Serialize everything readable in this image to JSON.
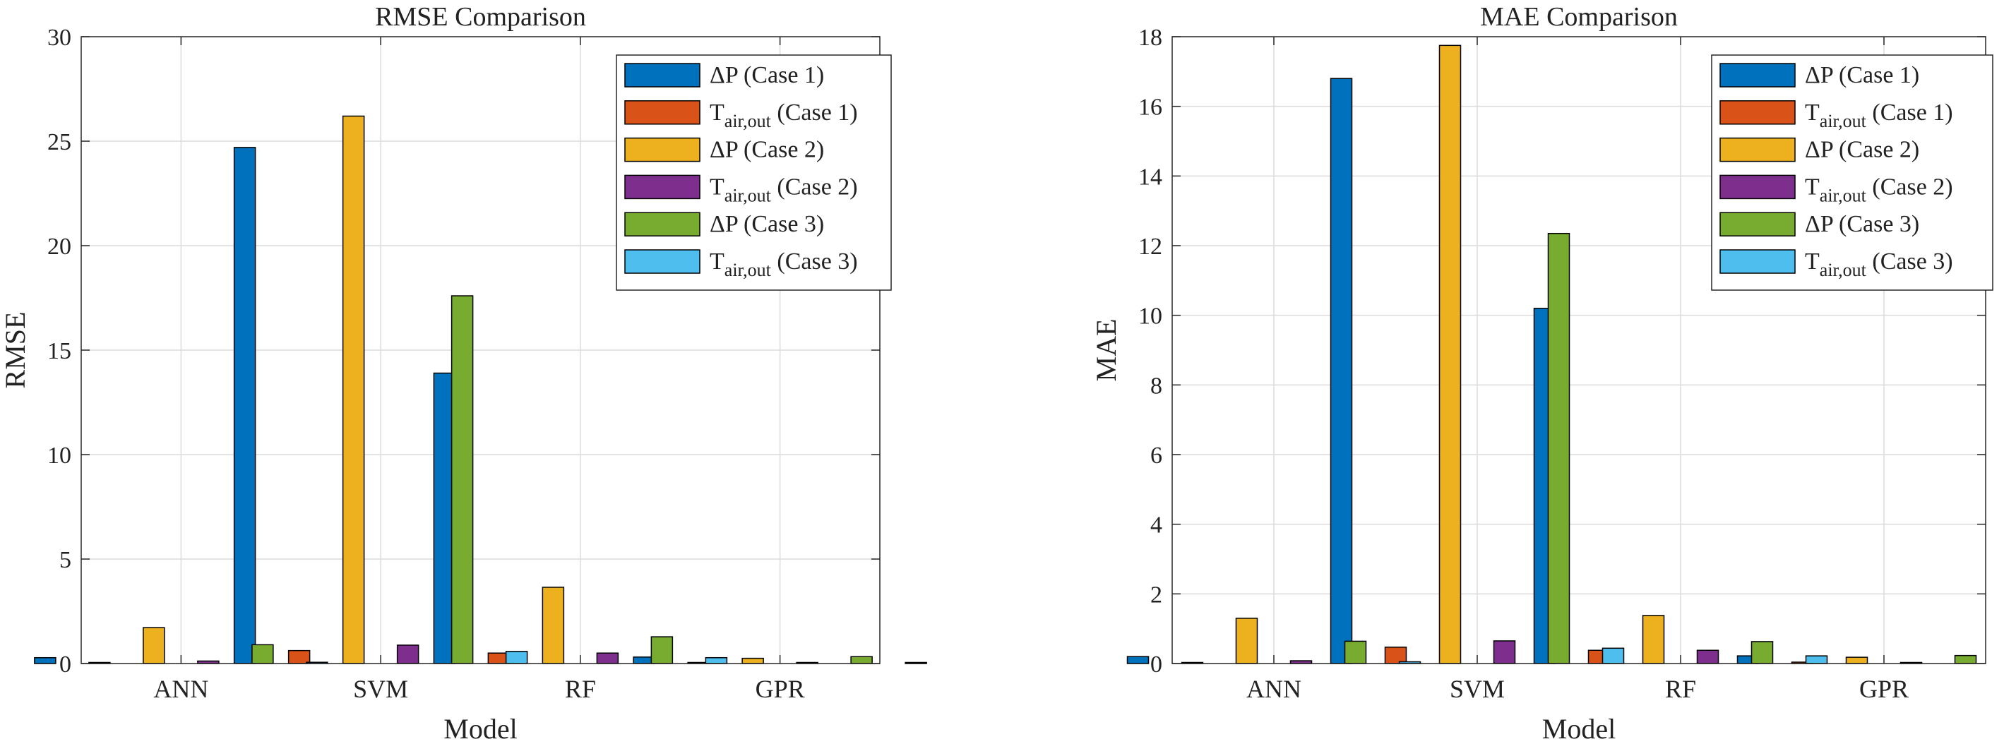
{
  "chart_data": [
    {
      "type": "bar",
      "title": "RMSE Comparison",
      "xlabel": "Model",
      "ylabel": "RMSE",
      "categories": [
        "ANN",
        "SVM",
        "RF",
        "GPR"
      ],
      "ylim": [
        0,
        30
      ],
      "yticks": [
        0,
        5,
        10,
        15,
        20,
        25,
        30
      ],
      "grid": true,
      "legend_position": "top-right",
      "series": [
        {
          "name": "ΔP (Case 1)",
          "base": "ΔP",
          "sub": "",
          "suffix": " (Case 1)",
          "color": "#0072BD",
          "values": [
            0.28,
            24.7,
            13.9,
            0.31
          ]
        },
        {
          "name": "Tair,out (Case 1)",
          "base": "T",
          "sub": "air,out",
          "suffix": " (Case 1)",
          "color": "#D95319",
          "values": [
            0.03,
            0.62,
            0.5,
            0.05
          ]
        },
        {
          "name": "ΔP (Case 2)",
          "base": "ΔP",
          "sub": "",
          "suffix": " (Case 2)",
          "color": "#EDB120",
          "values": [
            1.72,
            26.2,
            3.65,
            0.25
          ]
        },
        {
          "name": "Tair,out (Case 2)",
          "base": "T",
          "sub": "air,out",
          "suffix": " (Case 2)",
          "color": "#7E2F8E",
          "values": [
            0.12,
            0.88,
            0.5,
            0.04
          ]
        },
        {
          "name": "ΔP (Case 3)",
          "base": "ΔP",
          "sub": "",
          "suffix": " (Case 3)",
          "color": "#77AC30",
          "values": [
            0.9,
            17.6,
            1.28,
            0.33
          ]
        },
        {
          "name": "Tair,out (Case 3)",
          "base": "T",
          "sub": "air,out",
          "suffix": " (Case 3)",
          "color": "#4DBEEE",
          "values": [
            0.06,
            0.58,
            0.28,
            0.03
          ]
        }
      ]
    },
    {
      "type": "bar",
      "title": "MAE Comparison",
      "xlabel": "Model",
      "ylabel": "MAE",
      "categories": [
        "ANN",
        "SVM",
        "RF",
        "GPR"
      ],
      "ylim": [
        0,
        18
      ],
      "yticks": [
        0,
        2,
        4,
        6,
        8,
        10,
        12,
        14,
        16,
        18
      ],
      "grid": true,
      "legend_position": "top-right",
      "series": [
        {
          "name": "ΔP (Case 1)",
          "base": "ΔP",
          "sub": "",
          "suffix": " (Case 1)",
          "color": "#0072BD",
          "values": [
            0.2,
            16.8,
            10.2,
            0.22
          ]
        },
        {
          "name": "Tair,out (Case 1)",
          "base": "T",
          "sub": "air,out",
          "suffix": " (Case 1)",
          "color": "#D95319",
          "values": [
            0.02,
            0.47,
            0.38,
            0.04
          ]
        },
        {
          "name": "ΔP (Case 2)",
          "base": "ΔP",
          "sub": "",
          "suffix": " (Case 2)",
          "color": "#EDB120",
          "values": [
            1.3,
            17.75,
            1.38,
            0.18
          ]
        },
        {
          "name": "Tair,out (Case 2)",
          "base": "T",
          "sub": "air,out",
          "suffix": " (Case 2)",
          "color": "#7E2F8E",
          "values": [
            0.08,
            0.65,
            0.38,
            0.03
          ]
        },
        {
          "name": "ΔP (Case 3)",
          "base": "ΔP",
          "sub": "",
          "suffix": " (Case 3)",
          "color": "#77AC30",
          "values": [
            0.64,
            12.35,
            0.63,
            0.23
          ]
        },
        {
          "name": "Tair,out (Case 3)",
          "base": "T",
          "sub": "air,out",
          "suffix": " (Case 3)",
          "color": "#4DBEEE",
          "values": [
            0.05,
            0.44,
            0.22,
            0.02
          ]
        }
      ]
    }
  ]
}
